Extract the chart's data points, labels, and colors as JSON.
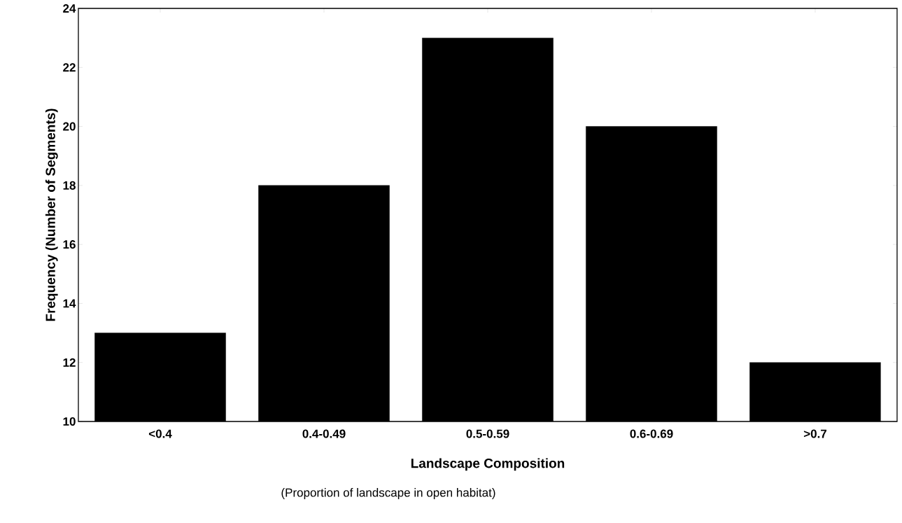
{
  "chart_data": {
    "type": "bar",
    "xlabel": "Landscape Composition",
    "ylabel": "Frequency (Number of Segments)",
    "annotations": [
      "(Proportion of landscape in open habitat)"
    ],
    "categories": [
      "<0.4",
      "0.4-0.49",
      "0.5-0.59",
      "0.6-0.69",
      ">0.7"
    ],
    "values": [
      13,
      18,
      23,
      20,
      12
    ],
    "color": "#000000",
    "ylim": [
      10,
      24
    ],
    "yticks": [
      10,
      12,
      14,
      16,
      18,
      20,
      22,
      24
    ],
    "grid": false
  }
}
